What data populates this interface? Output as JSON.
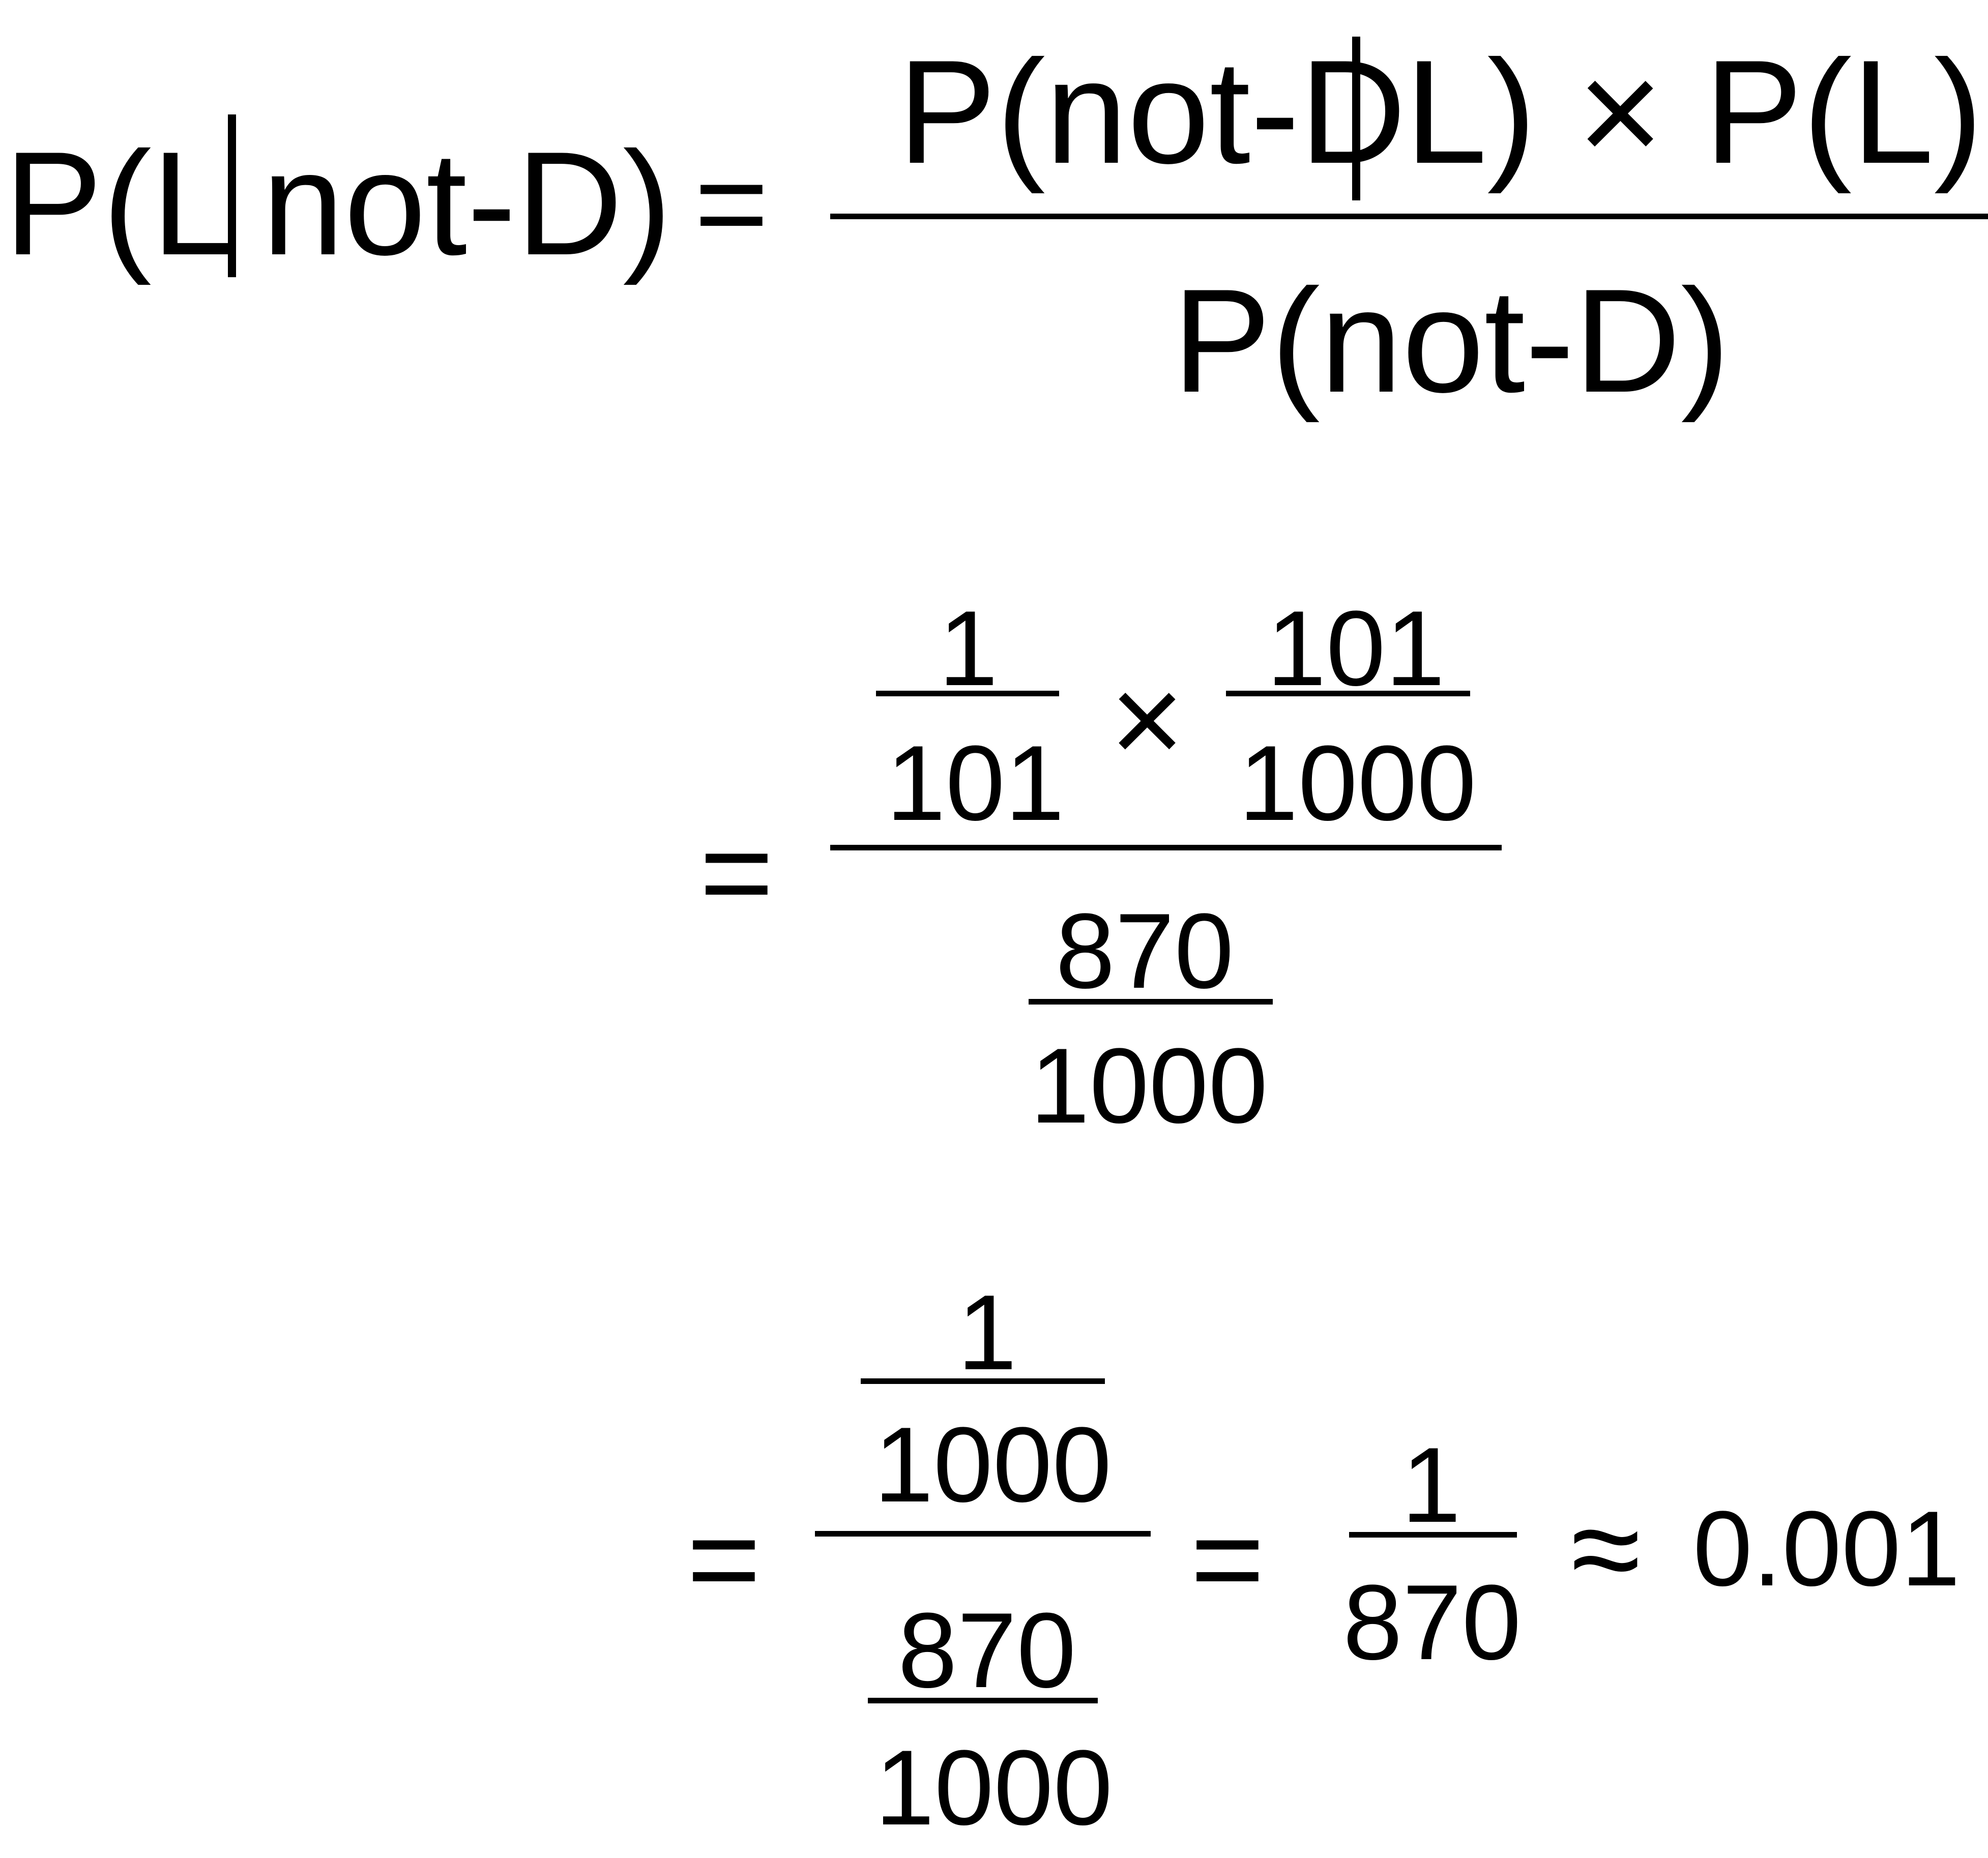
{
  "equation": {
    "line1": {
      "lhs_open": "P(L",
      "lhs_close": "not-D)",
      "equals": "=",
      "numerator_left": "P(not-D",
      "numerator_right": "L) × P(L)",
      "denominator": "P(not-D)"
    },
    "line2": {
      "equals": "=",
      "frac_a_num": "1",
      "frac_a_den": "101",
      "times": "×",
      "frac_b_num": "101",
      "frac_b_den": "1000",
      "den_frac_num": "870",
      "den_frac_den": "1000"
    },
    "line3": {
      "equals_1": "=",
      "top_frac_num": "1",
      "top_frac_den": "1000",
      "bottom_frac_num": "870",
      "bottom_frac_den": "1000",
      "equals_2": "=",
      "result_num": "1",
      "result_den": "870",
      "approx": "≈",
      "approx_value": "0.001"
    }
  }
}
